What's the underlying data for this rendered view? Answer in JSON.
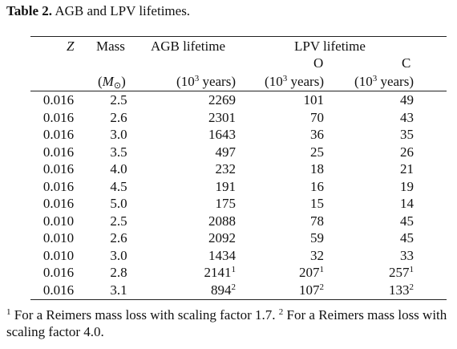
{
  "table": {
    "label": "Table 2.",
    "title": "AGB and LPV lifetimes.",
    "header": {
      "z": "Z",
      "mass": "Mass",
      "agb": "AGB lifetime",
      "lpv": "LPV lifetime",
      "o": "O",
      "c": "C",
      "mass_unit": {
        "open": "(",
        "symbol": "M",
        "sub": "⊙",
        "close": ")"
      },
      "time_units": [
        {
          "open": "(10",
          "exp": "3",
          "rest": " years)"
        },
        {
          "open": "(10",
          "exp": "3",
          "rest": " years)"
        },
        {
          "open": "(10",
          "exp": "3",
          "rest": " years)"
        }
      ]
    },
    "rows": [
      [
        "0.016",
        "2.5",
        "2269",
        "101",
        "49"
      ],
      [
        "0.016",
        "2.6",
        "2301",
        "70",
        "43"
      ],
      [
        "0.016",
        "3.0",
        "1643",
        "36",
        "35"
      ],
      [
        "0.016",
        "3.5",
        "497",
        "25",
        "26"
      ],
      [
        "0.016",
        "4.0",
        "232",
        "18",
        "21"
      ],
      [
        "0.016",
        "4.5",
        "191",
        "16",
        "19"
      ],
      [
        "0.016",
        "5.0",
        "175",
        "15",
        "14"
      ],
      [
        "0.010",
        "2.5",
        "2088",
        "78",
        "45"
      ],
      [
        "0.010",
        "2.6",
        "2092",
        "59",
        "45"
      ],
      [
        "0.010",
        "3.0",
        "1434",
        "32",
        "33"
      ],
      [
        "0.016",
        "2.8",
        {
          "text": "2141",
          "note": "1"
        },
        {
          "text": "207",
          "note": "1"
        },
        {
          "text": "257",
          "note": "1"
        }
      ],
      [
        "0.016",
        "3.1",
        {
          "text": "894",
          "note": "2"
        },
        {
          "text": "107",
          "note": "2"
        },
        {
          "text": "133",
          "note": "2"
        }
      ]
    ],
    "notes": [
      {
        "mark": "1",
        "text": "For a Reimers mass loss with scaling factor 1.7."
      },
      {
        "mark": "2",
        "text": "For a Reimers mass loss with scaling factor 4.0."
      }
    ]
  }
}
